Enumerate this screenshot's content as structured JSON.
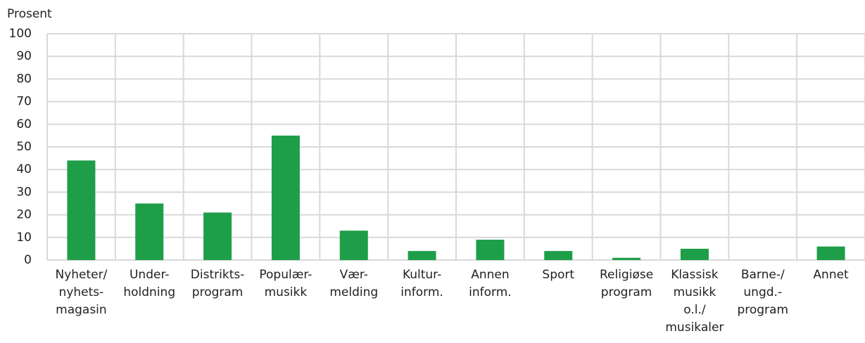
{
  "chart_data": {
    "type": "bar",
    "y_label": "Prosent",
    "categories": [
      [
        "Nyheter/",
        "nyhets-",
        "magasin"
      ],
      [
        "Under-",
        "holdning"
      ],
      [
        "Distrikts-",
        "program"
      ],
      [
        "Populær-",
        "musikk"
      ],
      [
        "Vær-",
        "melding"
      ],
      [
        "Kultur-",
        "inform."
      ],
      [
        "Annen",
        "inform."
      ],
      [
        "Sport"
      ],
      [
        "Religiøse",
        "program"
      ],
      [
        "Klassisk",
        "musikk",
        "o.l./",
        "musikaler"
      ],
      [
        "Barne-/",
        "ungd.-",
        "program"
      ],
      [
        "Annet"
      ]
    ],
    "values": [
      44,
      25,
      21,
      55,
      13,
      4,
      9,
      4,
      1,
      5,
      0,
      6
    ],
    "color": "#1f9e4a",
    "ylim": [
      0,
      100
    ],
    "yticks": [
      0,
      10,
      20,
      30,
      40,
      50,
      60,
      70,
      80,
      90,
      100
    ],
    "grid": true
  }
}
